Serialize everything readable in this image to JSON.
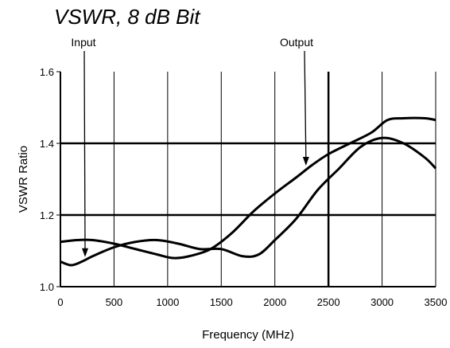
{
  "chart_data": {
    "type": "line",
    "title": "VSWR, 8 dB Bit",
    "xlabel": "Frequency (MHz)",
    "ylabel": "VSWR Ratio",
    "xlim": [
      0,
      3500
    ],
    "ylim": [
      1.0,
      1.6
    ],
    "x_ticks": [
      0,
      500,
      1000,
      1500,
      2000,
      2500,
      3000,
      3500
    ],
    "x_tick_labels": [
      "0",
      "500",
      "1000",
      "1500",
      "2000",
      "2500",
      "3000",
      "3500"
    ],
    "y_ticks": [
      1.0,
      1.2,
      1.4,
      1.6
    ],
    "y_tick_labels": [
      "1.0",
      "1.2",
      "1.4",
      "1.6"
    ],
    "grid": {
      "vertical": true,
      "horizontal_major": [
        1.2,
        1.4,
        2500
      ]
    },
    "series": [
      {
        "name": "Input",
        "x": [
          0,
          100,
          200,
          300,
          500,
          700,
          900,
          1100,
          1300,
          1500,
          1700,
          1850,
          2000,
          2200,
          2400,
          2600,
          2800,
          3000,
          3200,
          3400,
          3500
        ],
        "y": [
          1.07,
          1.06,
          1.07,
          1.085,
          1.11,
          1.125,
          1.13,
          1.12,
          1.105,
          1.105,
          1.085,
          1.09,
          1.13,
          1.19,
          1.27,
          1.33,
          1.39,
          1.415,
          1.4,
          1.36,
          1.33
        ]
      },
      {
        "name": "Output",
        "x": [
          0,
          150,
          300,
          500,
          700,
          900,
          1050,
          1200,
          1400,
          1600,
          1800,
          2000,
          2200,
          2350,
          2500,
          2700,
          2900,
          3050,
          3200,
          3400,
          3500
        ],
        "y": [
          1.125,
          1.13,
          1.13,
          1.12,
          1.105,
          1.09,
          1.08,
          1.085,
          1.105,
          1.15,
          1.21,
          1.26,
          1.305,
          1.34,
          1.37,
          1.4,
          1.43,
          1.465,
          1.47,
          1.47,
          1.465
        ]
      }
    ],
    "annotations": [
      {
        "text": "Input",
        "arrow_to": {
          "x": 230,
          "y": 1.085
        }
      },
      {
        "text": "Output",
        "arrow_to": {
          "x": 2290,
          "y": 1.34
        }
      }
    ]
  }
}
